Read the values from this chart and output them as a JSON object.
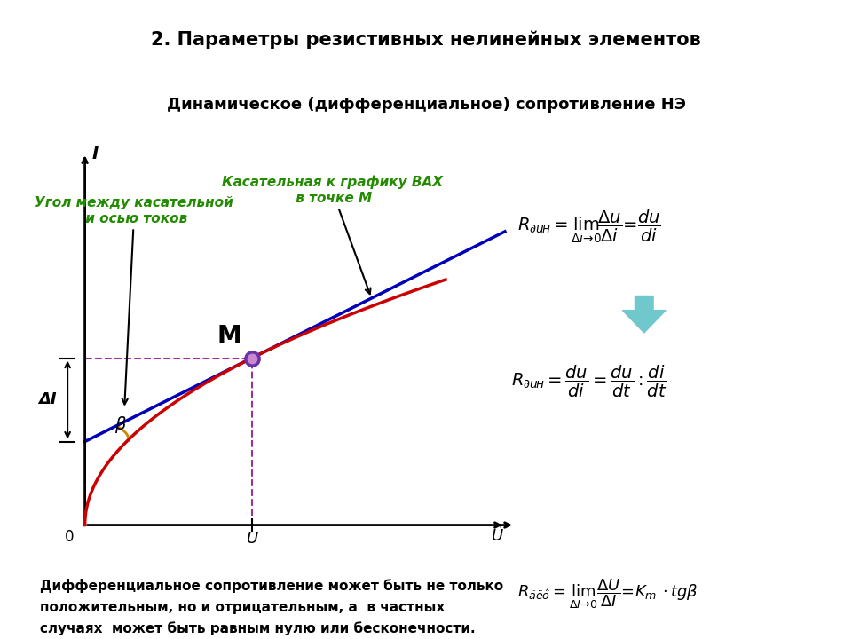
{
  "title_text": "2. Параметры резистивных нелинейных элементов",
  "subtitle_text": "Динамическое (дифференциальное) сопротивление НЭ",
  "title_bg": "#FFFF00",
  "subtitle_bg": "#C8D8E8",
  "bottom_bg": "#F5C89A",
  "bottom_text_line1": "Дифференциальное сопротивление может быть не только",
  "bottom_text_line2": "положительным, но и отрицательным, а  в частных",
  "bottom_text_line3": "случаях  может быть равным нулю или бесконечности.",
  "annotation1": "Угол между касательной\n и осью токов",
  "annotation2": "Касательная к графику ВАХ\n в точке М",
  "annotation1_color": "#228B00",
  "annotation2_color": "#228B00",
  "curve_color": "#CC0000",
  "tangent_color": "#0000BB",
  "dashed_color": "#993399",
  "beta_arc_color": "#CC8800",
  "point_color_face": "#CC88CC",
  "point_color_edge": "#6633AA",
  "M_label": "M",
  "beta_label": "β",
  "deltaI_label": "ΔI",
  "U_label": "U",
  "I_label": "I"
}
